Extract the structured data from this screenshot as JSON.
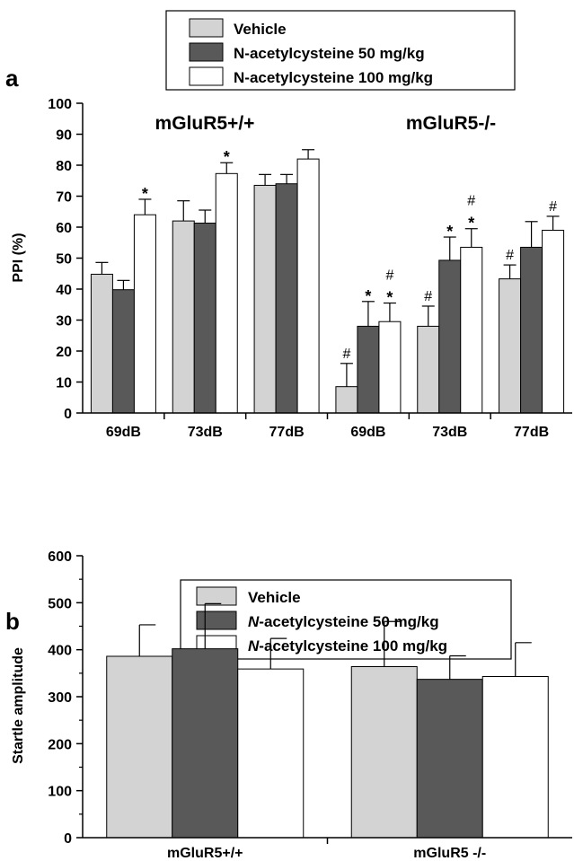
{
  "chart_data": [
    {
      "type": "bar",
      "panel_label": "a",
      "ylabel": "PPI (%)",
      "ylim": [
        0,
        100
      ],
      "yticks": [
        "0",
        "10",
        "20",
        "30",
        "40",
        "50",
        "60",
        "70",
        "80",
        "90",
        "100"
      ],
      "group_titles": [
        "mGluR5+/+",
        "mGluR5-/-"
      ],
      "categories": [
        "69dB",
        "73dB",
        "77dB",
        "69dB",
        "73dB",
        "77dB"
      ],
      "legend": [
        "Vehicle",
        "N-acetylcysteine 50 mg/kg",
        "N-acetylcysteine 100 mg/kg"
      ],
      "colors": [
        "#d3d3d3",
        "#595959",
        "#ffffff"
      ],
      "series": [
        {
          "name": "Vehicle",
          "values": [
            44.8,
            62,
            73.5,
            8.5,
            28,
            43.3
          ],
          "errors": [
            3.8,
            6.5,
            3.5,
            7.5,
            6.5,
            4.5
          ],
          "marks": [
            "",
            "",
            "",
            "#",
            "#",
            "#"
          ]
        },
        {
          "name": "N-acetylcysteine 50 mg/kg",
          "values": [
            39.8,
            61.3,
            74,
            28,
            49.3,
            53.5
          ],
          "errors": [
            3,
            4.2,
            3,
            8,
            7.5,
            8.3
          ],
          "marks": [
            "",
            "",
            "",
            "*",
            "*",
            ""
          ]
        },
        {
          "name": "N-acetylcysteine 100 mg/kg",
          "values": [
            64,
            77.3,
            82,
            29.5,
            53.5,
            59
          ],
          "errors": [
            5,
            3.5,
            3,
            6,
            6,
            4.5
          ],
          "marks": [
            "*",
            "*",
            "",
            "#*",
            "#*",
            "#"
          ]
        }
      ]
    },
    {
      "type": "bar",
      "panel_label": "b",
      "ylabel": "Startle amplitude",
      "ylim": [
        0,
        600
      ],
      "yticks": [
        "0",
        "100",
        "200",
        "300",
        "400",
        "500",
        "600"
      ],
      "categories": [
        "mGluR5+/+",
        "mGluR5 -/-"
      ],
      "legend": [
        "Vehicle",
        "N-acetylcysteine 50 mg/kg",
        "N-acetylcysteine 100 mg/kg"
      ],
      "legend_italic_prefix": "N",
      "colors": [
        "#d3d3d3",
        "#595959",
        "#ffffff"
      ],
      "series": [
        {
          "name": "Vehicle",
          "values": [
            386,
            364
          ],
          "errors": [
            67,
            96
          ]
        },
        {
          "name": "N-acetylcysteine 50 mg/kg",
          "values": [
            402,
            337
          ],
          "errors": [
            96,
            50
          ]
        },
        {
          "name": "N-acetylcysteine 100 mg/kg",
          "values": [
            359,
            343
          ],
          "errors": [
            65,
            72
          ]
        }
      ]
    }
  ]
}
